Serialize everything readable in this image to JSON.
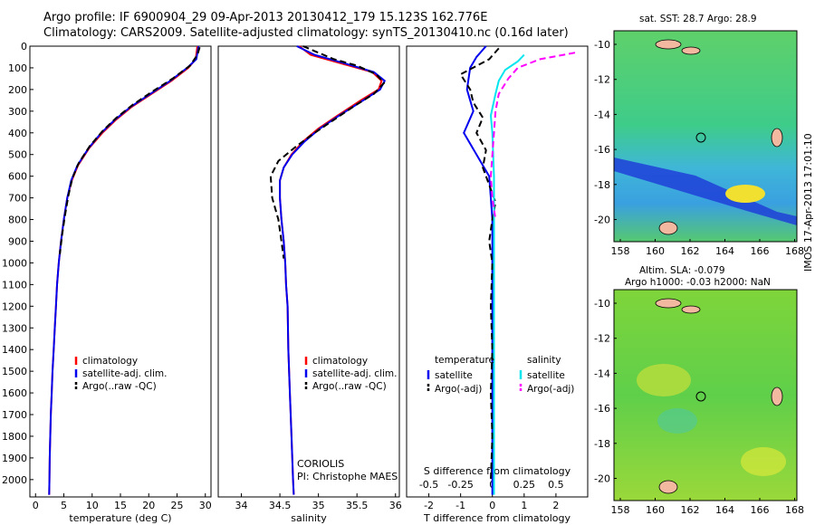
{
  "header": {
    "title_line1": "Argo profile: IF 6900904_29 09-Apr-2013 20130412_179 15.123S 162.776E",
    "title_line2": "Climatology: CARS2009. Satellite-adjusted climatology: synTS_20130410.nc (0.16d later)"
  },
  "map_sst": {
    "label": "sat. SST: 28.7 Argo: 28.9"
  },
  "map_sla": {
    "label1": "Altim. SLA: -0.079",
    "label2": "Argo h1000: -0.03 h2000: NaN"
  },
  "map_axes": {
    "lon_ticks": [
      "158",
      "160",
      "162",
      "164",
      "166",
      "168"
    ],
    "lat_ticks_top": [
      "-10",
      "-12",
      "-14",
      "-16",
      "-18",
      "-20"
    ],
    "lat_ticks_bottom": [
      "-10",
      "-12",
      "-14",
      "-16",
      "-18",
      "-20"
    ]
  },
  "stamp": "IMOS 17-Apr-2013 17:01:10",
  "credit": {
    "line1": "CORIOLIS",
    "line2": "PI: Christophe MAES"
  },
  "colors": {
    "climatology": "#ff0000",
    "satellite": "#0000ee",
    "argo": "#000000",
    "satellite_s": "#00e5ee",
    "argo_s": "#ff00ff"
  },
  "chart_data": [
    {
      "type": "line",
      "xlabel": "temperature (deg C)",
      "ylabel": "",
      "xlim": [
        -1,
        31
      ],
      "ylim": [
        2080,
        0
      ],
      "xticks": [
        0,
        5,
        10,
        15,
        20,
        25,
        30
      ],
      "yticks": [
        0,
        100,
        200,
        300,
        400,
        500,
        600,
        700,
        800,
        900,
        1000,
        1100,
        1200,
        1300,
        1400,
        1500,
        1600,
        1700,
        1800,
        1900,
        2000
      ],
      "legend": [
        "climatology",
        "satellite-adj. clim.",
        "Argo(..raw -QC)"
      ],
      "series": [
        {
          "name": "climatology",
          "values": [
            [
              28.6,
              0
            ],
            [
              28.3,
              60
            ],
            [
              27,
              100
            ],
            [
              24,
              160
            ],
            [
              20.5,
              220
            ],
            [
              17,
              280
            ],
            [
              14.2,
              340
            ],
            [
              11.8,
              400
            ],
            [
              9.5,
              470
            ],
            [
              7.5,
              550
            ],
            [
              6.4,
              620
            ],
            [
              5.6,
              700
            ],
            [
              5,
              800
            ],
            [
              4.5,
              900
            ],
            [
              4.1,
              1000
            ],
            [
              3.8,
              1100
            ],
            [
              3.6,
              1200
            ],
            [
              3.4,
              1300
            ],
            [
              3.2,
              1400
            ],
            [
              3,
              1500
            ],
            [
              2.85,
              1600
            ],
            [
              2.7,
              1700
            ],
            [
              2.6,
              1800
            ],
            [
              2.5,
              1900
            ],
            [
              2.45,
              2000
            ],
            [
              2.4,
              2070
            ]
          ]
        },
        {
          "name": "satellite-adj. clim.",
          "values": [
            [
              28.8,
              0
            ],
            [
              28.4,
              60
            ],
            [
              26.8,
              100
            ],
            [
              23.8,
              160
            ],
            [
              20.3,
              220
            ],
            [
              16.8,
              280
            ],
            [
              14,
              340
            ],
            [
              11.6,
              400
            ],
            [
              9.4,
              470
            ],
            [
              7.4,
              550
            ],
            [
              6.3,
              620
            ],
            [
              5.6,
              700
            ],
            [
              5,
              800
            ],
            [
              4.5,
              900
            ],
            [
              4.1,
              1000
            ],
            [
              3.8,
              1100
            ],
            [
              3.6,
              1200
            ],
            [
              3.4,
              1300
            ],
            [
              3.2,
              1400
            ],
            [
              3,
              1500
            ],
            [
              2.85,
              1600
            ],
            [
              2.7,
              1700
            ],
            [
              2.6,
              1800
            ],
            [
              2.5,
              1900
            ],
            [
              2.45,
              2000
            ],
            [
              2.4,
              2070
            ]
          ]
        },
        {
          "name": "Argo(..raw -QC)",
          "values": [
            [
              29,
              5
            ],
            [
              28.6,
              40
            ],
            [
              27.3,
              90
            ],
            [
              24.2,
              150
            ],
            [
              20.6,
              210
            ],
            [
              17.2,
              270
            ],
            [
              14.3,
              330
            ],
            [
              11.9,
              390
            ],
            [
              9.6,
              460
            ],
            [
              7.6,
              540
            ],
            [
              6.5,
              610
            ],
            [
              5.8,
              690
            ],
            [
              5.2,
              780
            ],
            [
              4.7,
              870
            ],
            [
              4.3,
              960
            ]
          ]
        }
      ]
    },
    {
      "type": "line",
      "xlabel": "salinity",
      "ylabel": "",
      "xlim": [
        33.7,
        36.05
      ],
      "ylim": [
        2080,
        0
      ],
      "xticks": [
        34,
        34.5,
        35,
        35.5,
        36
      ],
      "legend": [
        "climatology",
        "satellite-adj. clim.",
        "Argo(..raw -QC)"
      ],
      "series": [
        {
          "name": "climatology",
          "values": [
            [
              34.75,
              0
            ],
            [
              34.9,
              40
            ],
            [
              35.3,
              80
            ],
            [
              35.7,
              120
            ],
            [
              35.82,
              160
            ],
            [
              35.78,
              200
            ],
            [
              35.55,
              250
            ],
            [
              35.25,
              320
            ],
            [
              35.0,
              380
            ],
            [
              34.8,
              440
            ],
            [
              34.65,
              500
            ],
            [
              34.55,
              560
            ],
            [
              34.5,
              620
            ],
            [
              34.5,
              700
            ],
            [
              34.52,
              800
            ],
            [
              34.55,
              900
            ],
            [
              34.57,
              1000
            ],
            [
              34.58,
              1100
            ],
            [
              34.6,
              1200
            ],
            [
              34.61,
              1400
            ],
            [
              34.63,
              1600
            ],
            [
              34.65,
              1800
            ],
            [
              34.67,
              2000
            ],
            [
              34.68,
              2070
            ]
          ]
        },
        {
          "name": "satellite-adj. clim.",
          "values": [
            [
              34.72,
              0
            ],
            [
              34.95,
              40
            ],
            [
              35.35,
              80
            ],
            [
              35.72,
              120
            ],
            [
              35.86,
              160
            ],
            [
              35.8,
              200
            ],
            [
              35.58,
              250
            ],
            [
              35.27,
              320
            ],
            [
              35.02,
              380
            ],
            [
              34.82,
              440
            ],
            [
              34.66,
              500
            ],
            [
              34.55,
              560
            ],
            [
              34.5,
              620
            ],
            [
              34.5,
              700
            ],
            [
              34.52,
              800
            ],
            [
              34.55,
              900
            ],
            [
              34.57,
              1000
            ],
            [
              34.58,
              1100
            ],
            [
              34.6,
              1200
            ],
            [
              34.61,
              1400
            ],
            [
              34.63,
              1600
            ],
            [
              34.65,
              1800
            ],
            [
              34.67,
              2000
            ],
            [
              34.68,
              2070
            ]
          ]
        },
        {
          "name": "Argo(..raw -QC)",
          "values": [
            [
              34.8,
              0
            ],
            [
              35.0,
              30
            ],
            [
              35.2,
              60
            ],
            [
              35.5,
              90
            ],
            [
              35.75,
              130
            ],
            [
              35.85,
              170
            ],
            [
              35.72,
              220
            ],
            [
              35.45,
              280
            ],
            [
              35.2,
              340
            ],
            [
              34.95,
              400
            ],
            [
              34.72,
              460
            ],
            [
              34.48,
              530
            ],
            [
              34.38,
              600
            ],
            [
              34.4,
              700
            ],
            [
              34.48,
              800
            ],
            [
              34.52,
              900
            ],
            [
              34.55,
              980
            ]
          ]
        }
      ]
    },
    {
      "type": "line",
      "xlabel": "T difference from climatology",
      "xlabel_top": "S difference from climatology",
      "ylabel": "",
      "xlim": [
        -2.7,
        3
      ],
      "ylim": [
        2080,
        0
      ],
      "xticks": [
        -2,
        -1,
        0,
        1,
        2
      ],
      "xticks_s_labels": [
        "-0.5",
        "-0.25",
        "0",
        "0.25",
        "0.5"
      ],
      "legend_title_t": "temperature",
      "legend_title_s": "salinity",
      "legend": [
        "satellite",
        "Argo(-adj)",
        "satellite",
        "Argo(-adj)"
      ],
      "series": [
        {
          "name": "satellite",
          "values": [
            [
              -0.2,
              0
            ],
            [
              -0.5,
              50
            ],
            [
              -0.7,
              100
            ],
            [
              -0.8,
              200
            ],
            [
              -0.6,
              300
            ],
            [
              -0.9,
              400
            ],
            [
              -0.5,
              500
            ],
            [
              -0.1,
              600
            ],
            [
              -0.05,
              700
            ],
            [
              0,
              800
            ],
            [
              0,
              1000
            ],
            [
              0,
              1500
            ],
            [
              0,
              2070
            ]
          ]
        },
        {
          "name": "Argo(-adj)",
          "values": [
            [
              0.2,
              10
            ],
            [
              -0.1,
              60
            ],
            [
              -1,
              130
            ],
            [
              -0.7,
              200
            ],
            [
              -0.6,
              260
            ],
            [
              -0.3,
              330
            ],
            [
              -0.5,
              400
            ],
            [
              -0.2,
              480
            ],
            [
              -0.3,
              560
            ],
            [
              -0.1,
              640
            ],
            [
              0.1,
              720
            ],
            [
              0,
              800
            ],
            [
              -0.1,
              900
            ],
            [
              0,
              1000
            ],
            [
              -0.05,
              1200
            ],
            [
              0,
              1400
            ],
            [
              -0.05,
              1600
            ],
            [
              0,
              1800
            ],
            [
              -0.05,
              2000
            ]
          ]
        },
        {
          "name": "satellite",
          "values": [
            [
              1,
              40
            ],
            [
              0.8,
              70
            ],
            [
              0.4,
              110
            ],
            [
              0.2,
              160
            ],
            [
              0.1,
              220
            ],
            [
              -0.05,
              320
            ],
            [
              0,
              400
            ],
            [
              0.05,
              600
            ],
            [
              0.05,
              800
            ],
            [
              0.05,
              1200
            ],
            [
              0.05,
              2070
            ]
          ]
        },
        {
          "name": "Argo(-adj)",
          "values": [
            [
              2.6,
              30
            ],
            [
              1.5,
              60
            ],
            [
              0.8,
              100
            ],
            [
              0.5,
              150
            ],
            [
              0.2,
              220
            ],
            [
              0.1,
              300
            ],
            [
              0.05,
              400
            ],
            [
              -0.05,
              600
            ],
            [
              0,
              700
            ],
            [
              0.1,
              800
            ]
          ]
        }
      ]
    }
  ]
}
